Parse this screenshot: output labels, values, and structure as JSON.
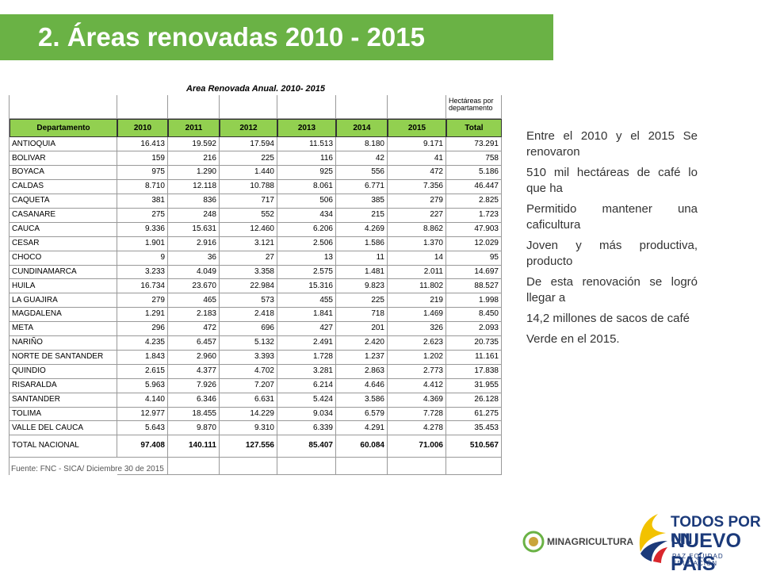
{
  "header": {
    "title": "2. Áreas renovadas 2010 - 2015"
  },
  "table": {
    "title": "Area Renovada Anual. 2010- 2015",
    "unit_note": "Hectáreas por departamento",
    "columns": [
      "Departamento",
      "2010",
      "2011",
      "2012",
      "2013",
      "2014",
      "2015",
      "Total"
    ],
    "rows": [
      [
        "ANTIOQUIA",
        "16.413",
        "19.592",
        "17.594",
        "11.513",
        "8.180",
        "9.171",
        "73.291"
      ],
      [
        "BOLIVAR",
        "159",
        "216",
        "225",
        "116",
        "42",
        "41",
        "758"
      ],
      [
        "BOYACA",
        "975",
        "1.290",
        "1.440",
        "925",
        "556",
        "472",
        "5.186"
      ],
      [
        "CALDAS",
        "8.710",
        "12.118",
        "10.788",
        "8.061",
        "6.771",
        "7.356",
        "46.447"
      ],
      [
        "CAQUETA",
        "381",
        "836",
        "717",
        "506",
        "385",
        "279",
        "2.825"
      ],
      [
        "CASANARE",
        "275",
        "248",
        "552",
        "434",
        "215",
        "227",
        "1.723"
      ],
      [
        "CAUCA",
        "9.336",
        "15.631",
        "12.460",
        "6.206",
        "4.269",
        "8.862",
        "47.903"
      ],
      [
        "CESAR",
        "1.901",
        "2.916",
        "3.121",
        "2.506",
        "1.586",
        "1.370",
        "12.029"
      ],
      [
        "CHOCO",
        "9",
        "36",
        "27",
        "13",
        "11",
        "14",
        "95"
      ],
      [
        "CUNDINAMARCA",
        "3.233",
        "4.049",
        "3.358",
        "2.575",
        "1.481",
        "2.011",
        "14.697"
      ],
      [
        "HUILA",
        "16.734",
        "23.670",
        "22.984",
        "15.316",
        "9.823",
        "11.802",
        "88.527"
      ],
      [
        "LA GUAJIRA",
        "279",
        "465",
        "573",
        "455",
        "225",
        "219",
        "1.998"
      ],
      [
        "MAGDALENA",
        "1.291",
        "2.183",
        "2.418",
        "1.841",
        "718",
        "1.469",
        "8.450"
      ],
      [
        "META",
        "296",
        "472",
        "696",
        "427",
        "201",
        "326",
        "2.093"
      ],
      [
        "NARIÑO",
        "4.235",
        "6.457",
        "5.132",
        "2.491",
        "2.420",
        "2.623",
        "20.735"
      ],
      [
        "NORTE DE SANTANDER",
        "1.843",
        "2.960",
        "3.393",
        "1.728",
        "1.237",
        "1.202",
        "11.161"
      ],
      [
        "QUINDIO",
        "2.615",
        "4.377",
        "4.702",
        "3.281",
        "2.863",
        "2.773",
        "17.838"
      ],
      [
        "RISARALDA",
        "5.963",
        "7.926",
        "7.207",
        "6.214",
        "4.646",
        "4.412",
        "31.955"
      ],
      [
        "SANTANDER",
        "4.140",
        "6.346",
        "6.631",
        "5.424",
        "3.586",
        "4.369",
        "26.128"
      ],
      [
        "TOLIMA",
        "12.977",
        "18.455",
        "14.229",
        "9.034",
        "6.579",
        "7.728",
        "61.275"
      ],
      [
        "VALLE DEL CAUCA",
        "5.643",
        "9.870",
        "9.310",
        "6.339",
        "4.291",
        "4.278",
        "35.453"
      ]
    ],
    "total": [
      "TOTAL NACIONAL",
      "97.408",
      "140.111",
      "127.556",
      "85.407",
      "60.084",
      "71.006",
      "510.567"
    ],
    "source": "Fuente: FNC - SICA/ Diciembre 30 de 2015"
  },
  "note": [
    "Entre el 2010 y el 2015 Se renovaron",
    "510 mil hectáreas de café lo que ha",
    "Permitido mantener una caficultura",
    "Joven y más productiva, producto",
    "De esta renovación se logró llegar a",
    "14,2 millones de sacos de café",
    "Verde en el 2015."
  ],
  "footer": {
    "ministry": "MINAGRICULTURA",
    "slogan_1": "TODOS POR UN",
    "slogan_2": "NUEVO PAÍS",
    "slogan_3": "PAZ  EQUIDAD  EDUCACIÓN"
  }
}
